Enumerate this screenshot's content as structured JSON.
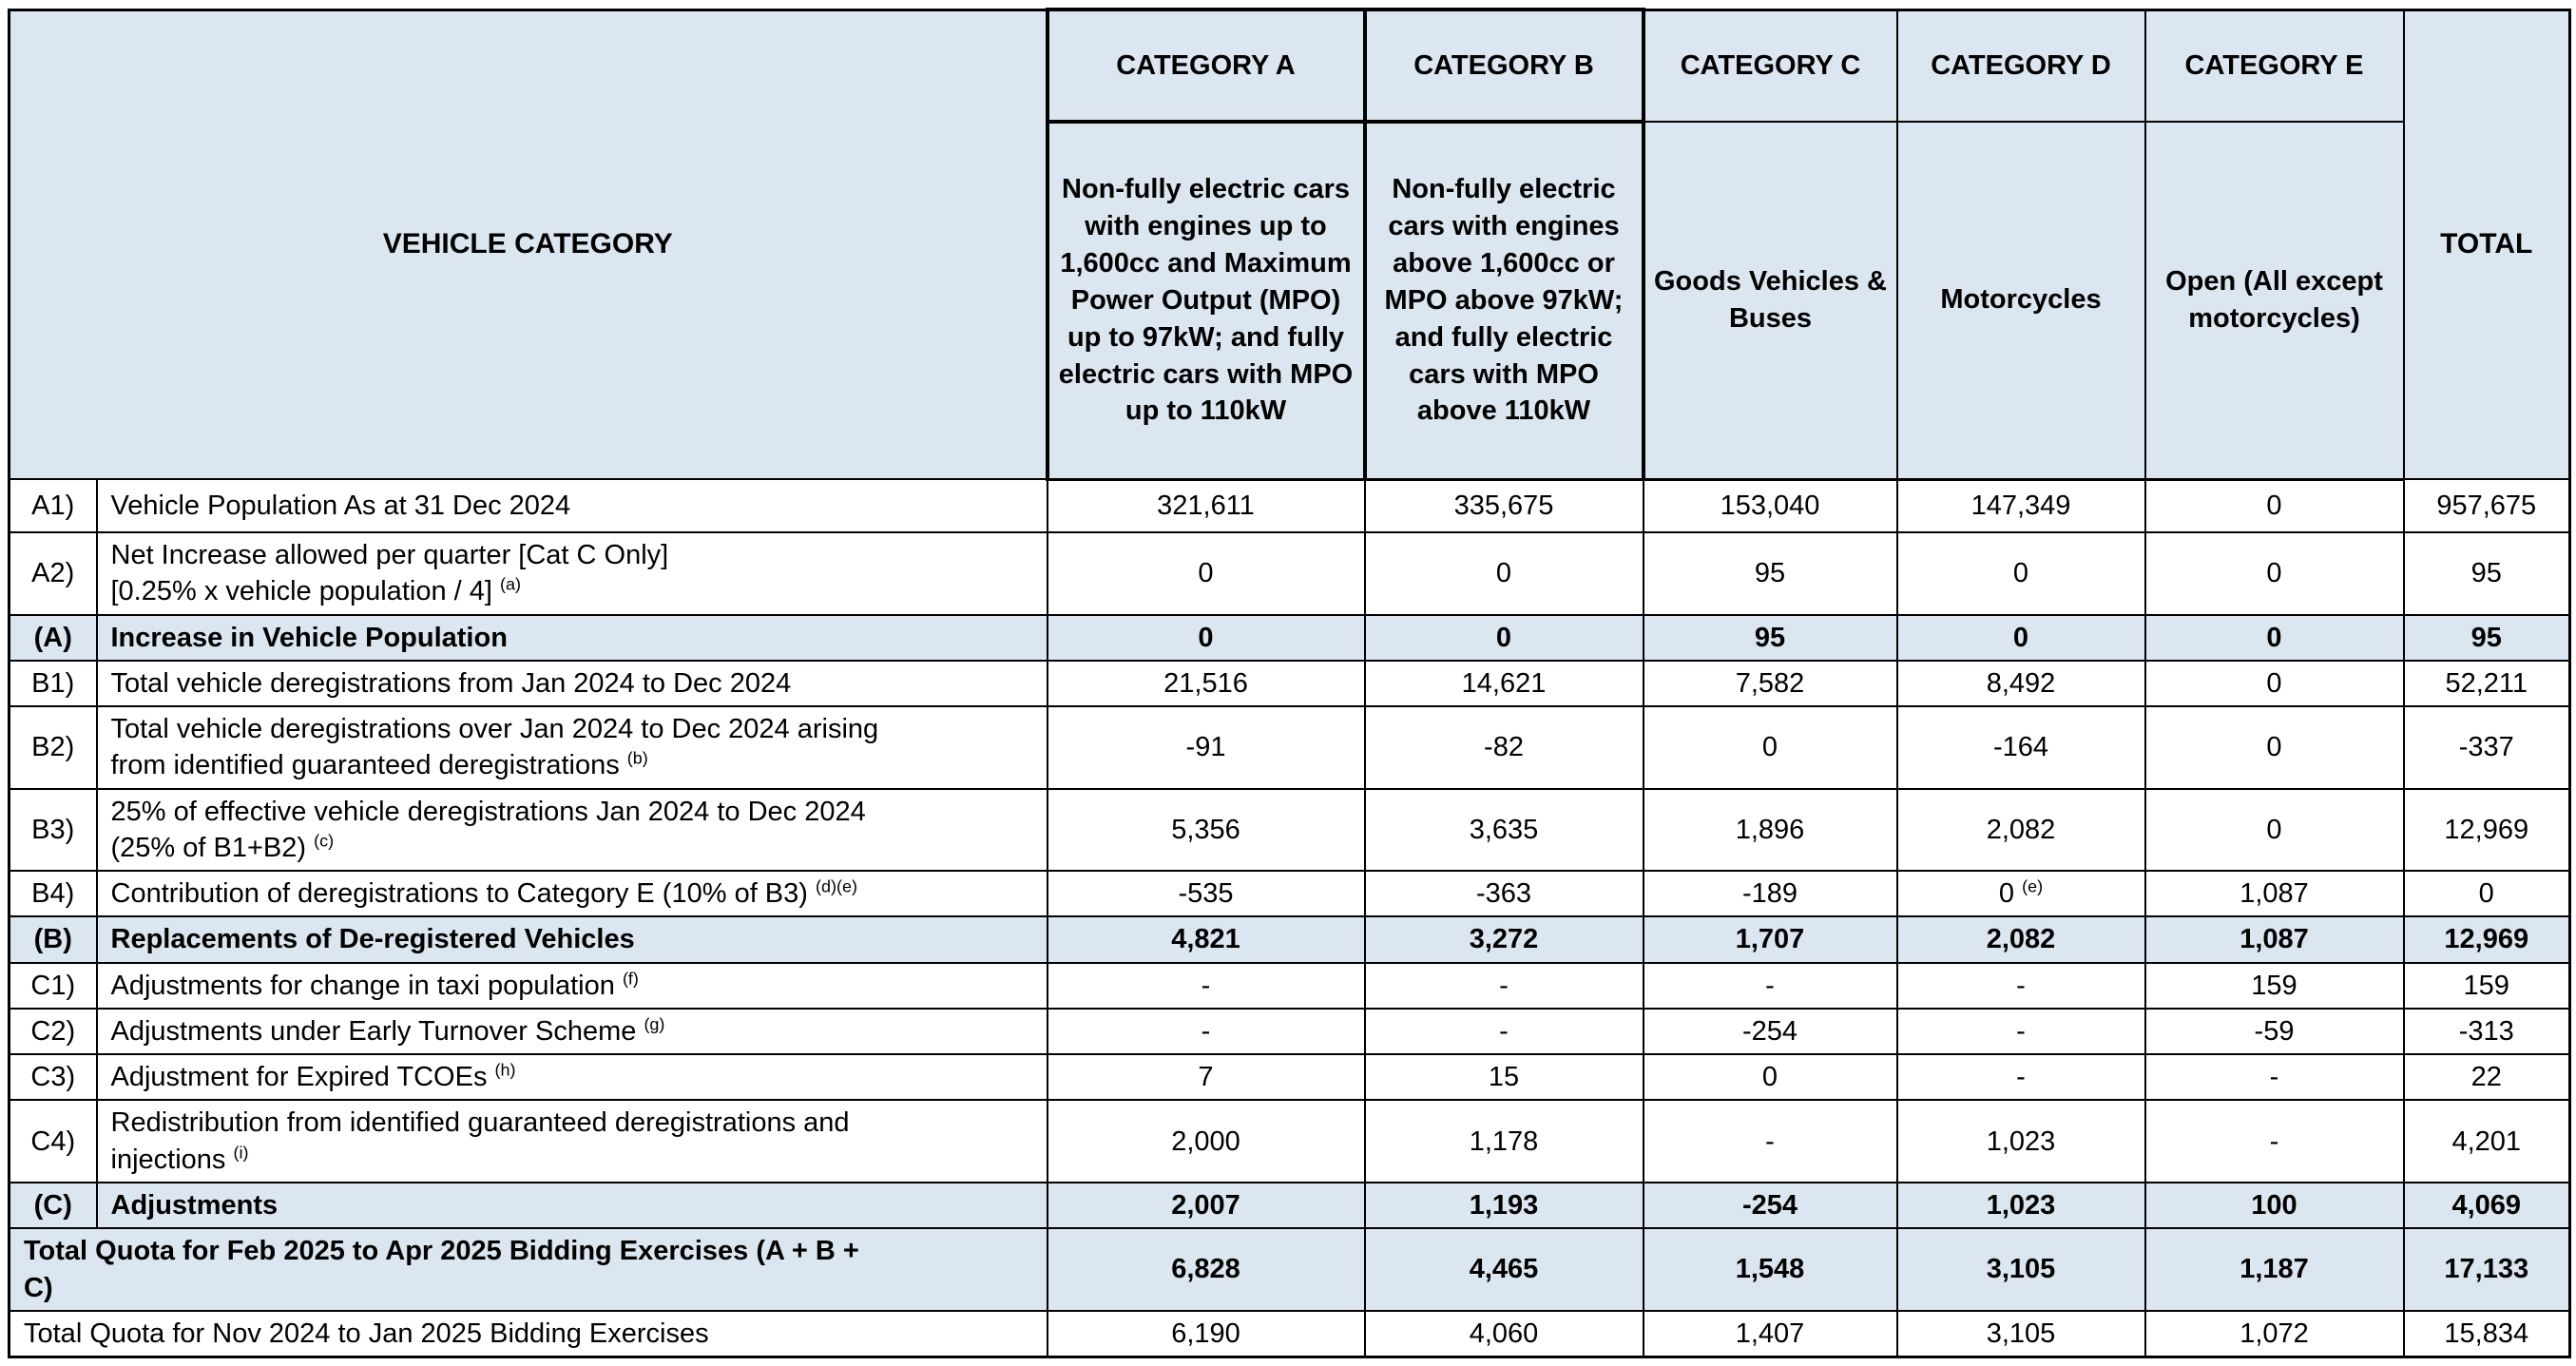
{
  "header": {
    "vehicle_category_label": "VEHICLE CATEGORY",
    "total_label": "TOTAL",
    "categories": [
      {
        "name": "CATEGORY A",
        "description": "Non-fully electric cars with engines up to 1,600cc and Maximum Power Output (MPO) up to 97kW; and fully electric cars with MPO up to 110kW",
        "emphasized": true
      },
      {
        "name": "CATEGORY B",
        "description": "Non-fully electric cars with engines above 1,600cc or MPO above 97kW; and fully electric cars with MPO above 110kW",
        "emphasized": true
      },
      {
        "name": "CATEGORY C",
        "description": "Goods Vehicles & Buses",
        "emphasized": false
      },
      {
        "name": "CATEGORY D",
        "description": "Motorcycles",
        "emphasized": false
      },
      {
        "name": "CATEGORY E",
        "description": "Open (All except motorcycles)",
        "emphasized": false
      }
    ]
  },
  "colors": {
    "fill_blue": "#dce6f1",
    "border": "#000000",
    "text": "#000000",
    "background": "#ffffff"
  },
  "rows": [
    {
      "id": "A1)",
      "label_lines": [
        {
          "text": "Vehicle Population As at 31 Dec 2024"
        }
      ],
      "values": [
        "321,611",
        "335,675",
        "153,040",
        "147,349",
        "0",
        "957,675"
      ]
    },
    {
      "id": "A2)",
      "label_lines": [
        {
          "text": "Net Increase allowed per quarter [Cat C Only]"
        },
        {
          "text": "[0.25% x vehicle population / 4]",
          "sup": "(a)"
        }
      ],
      "values": [
        "0",
        "0",
        "95",
        "0",
        "0",
        "95"
      ]
    },
    {
      "id": "(A)",
      "bold": true,
      "shaded": true,
      "label_lines": [
        {
          "text": "Increase in Vehicle Population"
        }
      ],
      "values": [
        "0",
        "0",
        "95",
        "0",
        "0",
        "95"
      ]
    },
    {
      "id": "B1)",
      "label_lines": [
        {
          "text": "Total vehicle deregistrations from Jan 2024 to Dec 2024"
        }
      ],
      "values": [
        "21,516",
        "14,621",
        "7,582",
        "8,492",
        "0",
        "52,211"
      ]
    },
    {
      "id": "B2)",
      "label_lines": [
        {
          "text": "Total vehicle deregistrations over Jan 2024 to Dec 2024 arising"
        },
        {
          "text": "from identified guaranteed deregistrations",
          "sup": "(b)"
        }
      ],
      "values": [
        "-91",
        "-82",
        "0",
        "-164",
        "0",
        "-337"
      ]
    },
    {
      "id": "B3)",
      "label_lines": [
        {
          "text": "25% of effective vehicle deregistrations Jan 2024 to Dec 2024"
        },
        {
          "text": "(25% of B1+B2)",
          "sup": "(c)"
        }
      ],
      "values": [
        "5,356",
        "3,635",
        "1,896",
        "2,082",
        "0",
        "12,969"
      ]
    },
    {
      "id": "B4)",
      "label_lines": [
        {
          "text": "Contribution of deregistrations to Category E (10% of B3)",
          "sup": "(d)(e)"
        }
      ],
      "values": [
        "-535",
        "-363",
        "-189",
        {
          "v": "0",
          "sup": "(e)"
        },
        "1,087",
        "0"
      ]
    },
    {
      "id": "(B)",
      "bold": true,
      "shaded": true,
      "label_lines": [
        {
          "text": "Replacements of De-registered Vehicles"
        }
      ],
      "values": [
        "4,821",
        "3,272",
        "1,707",
        "2,082",
        "1,087",
        "12,969"
      ]
    },
    {
      "id": "C1)",
      "label_lines": [
        {
          "text": "Adjustments for change in taxi population",
          "sup": "(f)"
        }
      ],
      "values": [
        "-",
        "-",
        "-",
        "-",
        "159",
        "159"
      ]
    },
    {
      "id": "C2)",
      "label_lines": [
        {
          "text": "Adjustments under Early Turnover Scheme",
          "sup": "(g)"
        }
      ],
      "values": [
        "-",
        "-",
        "-254",
        "-",
        "-59",
        "-313"
      ]
    },
    {
      "id": "C3)",
      "label_lines": [
        {
          "text": "Adjustment for Expired TCOEs",
          "sup": "(h)"
        }
      ],
      "values": [
        "7",
        "15",
        "0",
        "-",
        "-",
        "22"
      ]
    },
    {
      "id": "C4)",
      "label_lines": [
        {
          "text": "Redistribution from identified guaranteed deregistrations and"
        },
        {
          "text": "injections",
          "sup": "(i)"
        }
      ],
      "values": [
        "2,000",
        "1,178",
        "-",
        "1,023",
        "-",
        "4,201"
      ]
    },
    {
      "id": "(C)",
      "bold": true,
      "shaded": true,
      "label_lines": [
        {
          "text": "Adjustments"
        }
      ],
      "values": [
        "2,007",
        "1,193",
        "-254",
        "1,023",
        "100",
        "4,069"
      ]
    },
    {
      "span_label": true,
      "bold": true,
      "shaded": true,
      "label_lines": [
        {
          "text": "Total Quota for Feb 2025 to Apr 2025 Bidding Exercises (A + B +"
        },
        {
          "text": "C)"
        }
      ],
      "values": [
        "6,828",
        "4,465",
        "1,548",
        "3,105",
        "1,187",
        "17,133"
      ]
    },
    {
      "span_label": true,
      "label_lines": [
        {
          "text": "Total Quota for Nov 2024 to Jan 2025 Bidding Exercises"
        }
      ],
      "values": [
        "6,190",
        "4,060",
        "1,407",
        "3,105",
        "1,072",
        "15,834"
      ]
    }
  ]
}
